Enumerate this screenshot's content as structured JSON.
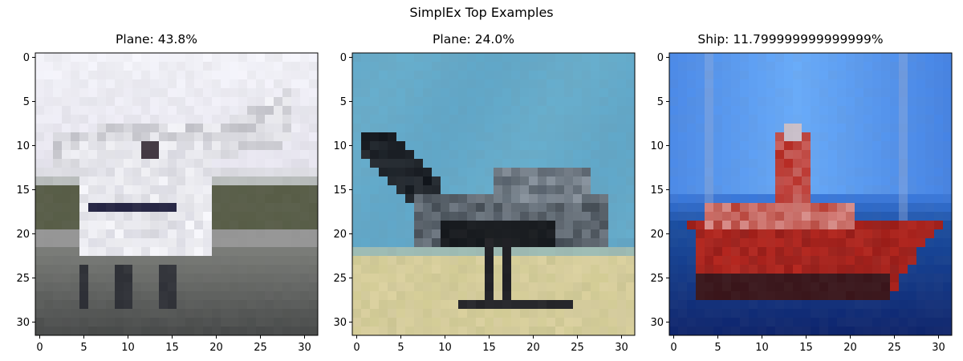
{
  "figure": {
    "suptitle": "SimplEx Top Examples"
  },
  "chart_data": [
    {
      "type": "image",
      "title": "Plane: 43.8%",
      "xticks": [
        0,
        5,
        10,
        15,
        20,
        25,
        30
      ],
      "yticks": [
        0,
        5,
        10,
        15,
        20,
        25,
        30
      ],
      "xlim": [
        -0.5,
        31.5
      ],
      "ylim": [
        31.5,
        -0.5
      ],
      "image_description_colors": {
        "sky": "#e8e6ef",
        "plane": "#f2f2f6",
        "ground": "#5a5f4a",
        "road": "#7a7c78"
      }
    },
    {
      "type": "image",
      "title": "Plane: 24.0%",
      "xticks": [
        0,
        5,
        10,
        15,
        20,
        25,
        30
      ],
      "yticks": [
        0,
        5,
        10,
        15,
        20,
        25,
        30
      ],
      "xlim": [
        -0.5,
        31.5
      ],
      "ylim": [
        31.5,
        -0.5
      ],
      "image_description_colors": {
        "sky": "#62a6c6",
        "plane": "#2a3036",
        "ground": "#d9cfa0"
      }
    },
    {
      "type": "image",
      "title": "Ship: 11.799999999999999%",
      "xticks": [
        0,
        5,
        10,
        15,
        20,
        25,
        30
      ],
      "yticks": [
        0,
        5,
        10,
        15,
        20,
        25,
        30
      ],
      "xlim": [
        -0.5,
        31.5
      ],
      "ylim": [
        31.5,
        -0.5
      ],
      "image_description_colors": {
        "sky": "#5c98e8",
        "sea": "#1d4fa0",
        "hull": "#b52a22"
      }
    }
  ]
}
